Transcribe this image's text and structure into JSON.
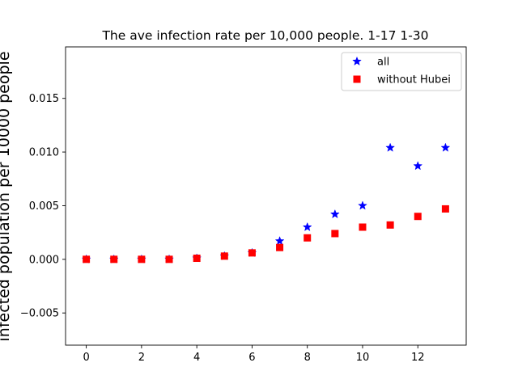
{
  "chart_data": {
    "type": "scatter",
    "title": "The ave infection rate per 10,000 people. 1-17 1-30",
    "xlabel": "",
    "ylabel": "infected population per 10000 people",
    "xlim": [
      -0.75,
      13.75
    ],
    "ylim": [
      -0.008,
      0.0198
    ],
    "xticks": [
      0,
      2,
      4,
      6,
      8,
      10,
      12
    ],
    "xtick_labels": [
      "0",
      "2",
      "4",
      "6",
      "8",
      "10",
      "12"
    ],
    "yticks": [
      -0.005,
      0.0,
      0.005,
      0.01,
      0.015
    ],
    "ytick_labels": [
      "−0.005",
      "0.000",
      "0.005",
      "0.010",
      "0.015"
    ],
    "grid": false,
    "legend_position": "top-right",
    "series": [
      {
        "name": "all",
        "marker": "star",
        "color": "#0000ff",
        "x": [
          0,
          1,
          2,
          3,
          4,
          5,
          6,
          7,
          8,
          9,
          10,
          11,
          12,
          13
        ],
        "y": [
          0.0,
          0.0,
          0.0,
          0.0,
          0.0001,
          0.0003,
          0.0006,
          0.0017,
          0.003,
          0.0042,
          0.005,
          0.0104,
          0.0087,
          0.0104
        ]
      },
      {
        "name": "without Hubei",
        "marker": "square",
        "color": "#ff0000",
        "x": [
          0,
          1,
          2,
          3,
          4,
          5,
          6,
          7,
          8,
          9,
          10,
          11,
          12,
          13
        ],
        "y": [
          0.0,
          0.0,
          0.0,
          0.0,
          0.0001,
          0.0003,
          0.0006,
          0.0011,
          0.002,
          0.0024,
          0.003,
          0.0032,
          0.004,
          0.0047
        ]
      }
    ]
  }
}
